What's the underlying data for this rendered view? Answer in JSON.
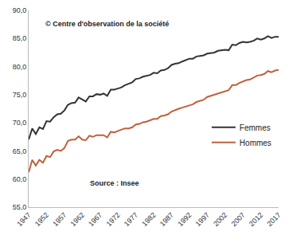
{
  "chart_data": {
    "type": "line",
    "x": [
      1947,
      1948,
      1949,
      1950,
      1951,
      1952,
      1953,
      1954,
      1955,
      1956,
      1957,
      1958,
      1959,
      1960,
      1961,
      1962,
      1963,
      1964,
      1965,
      1966,
      1967,
      1968,
      1969,
      1970,
      1971,
      1972,
      1973,
      1974,
      1975,
      1976,
      1977,
      1978,
      1979,
      1980,
      1981,
      1982,
      1983,
      1984,
      1985,
      1986,
      1987,
      1988,
      1989,
      1990,
      1991,
      1992,
      1993,
      1994,
      1995,
      1996,
      1997,
      1998,
      1999,
      2000,
      2001,
      2002,
      2003,
      2004,
      2005,
      2006,
      2007,
      2008,
      2009,
      2010,
      2011,
      2012,
      2013,
      2014,
      2015,
      2016,
      2017
    ],
    "series": [
      {
        "name": "Femmes",
        "color": "#333333",
        "values": [
          67.0,
          69.0,
          68.0,
          69.2,
          68.9,
          70.3,
          70.2,
          71.0,
          71.5,
          71.6,
          72.2,
          73.2,
          73.5,
          73.6,
          74.5,
          74.1,
          73.8,
          74.7,
          74.7,
          75.1,
          75.0,
          75.2,
          74.8,
          75.9,
          75.9,
          76.1,
          76.3,
          76.7,
          76.9,
          77.2,
          77.8,
          77.9,
          78.2,
          78.4,
          78.5,
          78.9,
          78.8,
          79.3,
          79.4,
          79.7,
          80.3,
          80.5,
          80.6,
          80.9,
          81.1,
          81.4,
          81.4,
          81.8,
          81.9,
          82.0,
          82.3,
          82.4,
          82.5,
          82.8,
          82.9,
          83.0,
          82.9,
          83.9,
          83.8,
          84.2,
          84.4,
          84.3,
          84.4,
          84.6,
          85.0,
          84.8,
          85.0,
          85.4,
          85.1,
          85.3,
          85.3
        ]
      },
      {
        "name": "Hommes",
        "color": "#c0603a",
        "values": [
          61.2,
          63.4,
          62.4,
          63.4,
          62.9,
          64.1,
          63.9,
          64.9,
          65.2,
          65.0,
          65.5,
          66.8,
          67.0,
          67.0,
          67.6,
          67.0,
          66.9,
          67.7,
          67.5,
          67.8,
          67.8,
          67.8,
          67.4,
          68.4,
          68.3,
          68.6,
          68.8,
          69.0,
          69.0,
          69.2,
          69.7,
          69.8,
          70.1,
          70.2,
          70.4,
          70.7,
          70.7,
          71.2,
          71.3,
          71.5,
          72.0,
          72.3,
          72.5,
          72.7,
          72.9,
          73.2,
          73.3,
          73.7,
          73.9,
          74.1,
          74.6,
          74.8,
          75.0,
          75.3,
          75.4,
          75.7,
          75.8,
          76.7,
          76.7,
          77.1,
          77.4,
          77.6,
          77.7,
          78.0,
          78.4,
          78.5,
          78.7,
          79.2,
          79.0,
          79.3,
          79.4
        ]
      }
    ],
    "xlim": [
      1947,
      2017
    ],
    "xticks": [
      1947,
      1952,
      1957,
      1962,
      1967,
      1972,
      1977,
      1982,
      1987,
      1992,
      1997,
      2002,
      2007,
      2012,
      2017
    ],
    "ylim": [
      55,
      90
    ],
    "yticks": [
      {
        "value": 55,
        "label": "55,0"
      },
      {
        "value": 60,
        "label": "60,0"
      },
      {
        "value": 65,
        "label": "65,0"
      },
      {
        "value": 70,
        "label": "70,0"
      },
      {
        "value": 75,
        "label": "75,0"
      },
      {
        "value": 80,
        "label": "80,0"
      },
      {
        "value": 85,
        "label": "85,0"
      },
      {
        "value": 90,
        "label": "90,0"
      }
    ],
    "annotations": [
      "© Centre d'observation de la société",
      "Source : Insee"
    ],
    "legend": "lower right",
    "grid": false
  }
}
